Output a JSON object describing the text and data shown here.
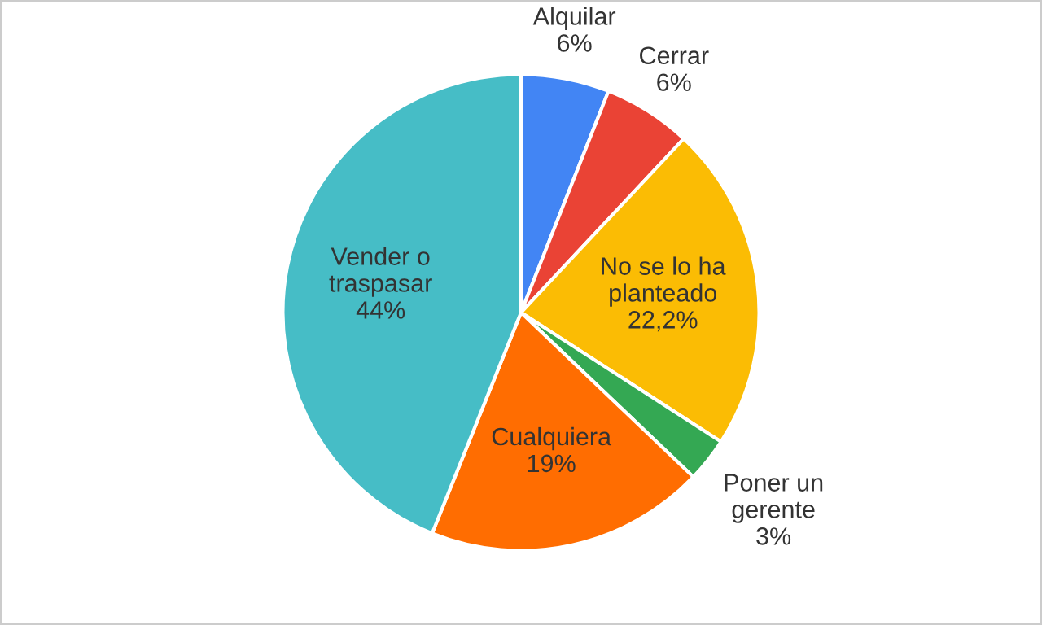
{
  "chart_data": {
    "type": "pie",
    "categories": [
      "Alquilar",
      "Cerrar",
      "No se lo ha\nplanteado",
      "Poner un\ngerente",
      "Cualquiera",
      "Vender o\ntraspasar"
    ],
    "values": [
      6,
      6,
      22.2,
      3,
      19,
      44
    ],
    "value_labels": [
      "6%",
      "6%",
      "22,2%",
      "3%",
      "19%",
      "44%"
    ],
    "colors": [
      "#4285f4",
      "#ea4335",
      "#fbbc04",
      "#34a853",
      "#ff6d01",
      "#46bdc6"
    ],
    "legend": false
  }
}
